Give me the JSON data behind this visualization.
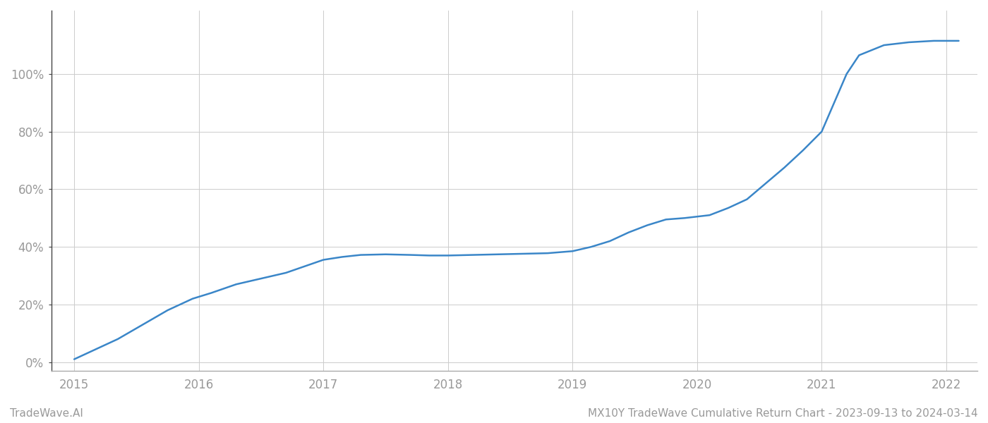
{
  "x_years": [
    2015.0,
    2015.15,
    2015.35,
    2015.55,
    2015.75,
    2015.95,
    2016.1,
    2016.3,
    2016.5,
    2016.7,
    2016.9,
    2017.0,
    2017.15,
    2017.3,
    2017.5,
    2017.7,
    2017.85,
    2018.0,
    2018.2,
    2018.4,
    2018.6,
    2018.8,
    2019.0,
    2019.15,
    2019.3,
    2019.45,
    2019.6,
    2019.75,
    2019.9,
    2020.0,
    2020.1,
    2020.25,
    2020.4,
    2020.55,
    2020.7,
    2020.85,
    2021.0,
    2021.1,
    2021.2,
    2021.3,
    2021.5,
    2021.7,
    2021.9,
    2022.0,
    2022.1
  ],
  "y_values": [
    0.01,
    0.04,
    0.08,
    0.13,
    0.18,
    0.22,
    0.24,
    0.27,
    0.29,
    0.31,
    0.34,
    0.355,
    0.365,
    0.372,
    0.374,
    0.372,
    0.37,
    0.37,
    0.372,
    0.374,
    0.376,
    0.378,
    0.385,
    0.4,
    0.42,
    0.45,
    0.475,
    0.495,
    0.5,
    0.505,
    0.51,
    0.535,
    0.565,
    0.62,
    0.675,
    0.735,
    0.8,
    0.9,
    1.0,
    1.065,
    1.1,
    1.11,
    1.115,
    1.115,
    1.115
  ],
  "line_color": "#3a86c8",
  "line_width": 1.8,
  "background_color": "#ffffff",
  "grid_color": "#cccccc",
  "grid_linewidth": 0.7,
  "tick_label_color": "#999999",
  "tick_label_fontsize": 12,
  "yticks": [
    0.0,
    0.2,
    0.4,
    0.6,
    0.8,
    1.0
  ],
  "ytick_labels": [
    "0%",
    "20%",
    "40%",
    "60%",
    "80%",
    "100%"
  ],
  "xticks": [
    2015,
    2016,
    2017,
    2018,
    2019,
    2020,
    2021,
    2022
  ],
  "xlim": [
    2014.82,
    2022.25
  ],
  "ylim": [
    -0.03,
    1.22
  ],
  "footer_left": "TradeWave.AI",
  "footer_right": "MX10Y TradeWave Cumulative Return Chart - 2023-09-13 to 2024-03-14",
  "footer_fontsize": 11,
  "left_spine_color": "#444444",
  "bottom_spine_color": "#aaaaaa"
}
